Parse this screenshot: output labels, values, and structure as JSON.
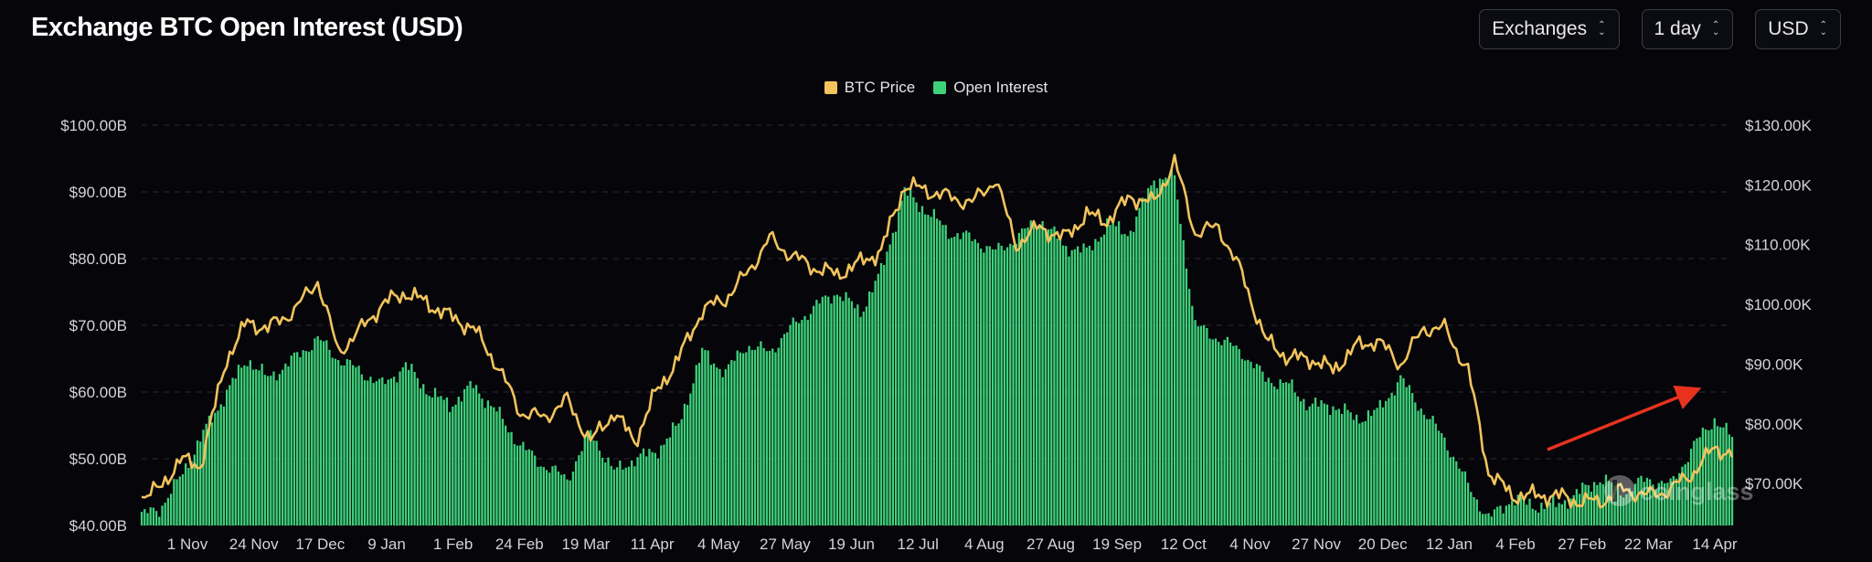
{
  "header": {
    "title": "Exchange BTC Open Interest (USD)",
    "controls": [
      {
        "name": "exchanges-select",
        "label": "Exchanges"
      },
      {
        "name": "interval-select",
        "label": "1 day"
      },
      {
        "name": "currency-select",
        "label": "USD"
      }
    ]
  },
  "watermark": "coinglass",
  "colors": {
    "background": "#05050a",
    "price_line": "#f2c35c",
    "oi_bar": "#3ed17a",
    "arrow": "#e8321e",
    "grid": "#2a2d35"
  },
  "chart_data": {
    "type": "bar",
    "title": "Exchange BTC Open Interest (USD)",
    "legend": {
      "placement": "top-center",
      "entries": [
        "BTC Price",
        "Open Interest"
      ]
    },
    "grid": true,
    "x_tick_labels": [
      "1 Nov",
      "24 Nov",
      "17 Dec",
      "9 Jan",
      "1 Feb",
      "24 Feb",
      "19 Mar",
      "11 Apr",
      "4 May",
      "27 May",
      "19 Jun",
      "12 Jul",
      "4 Aug",
      "27 Aug",
      "19 Sep",
      "12 Oct",
      "4 Nov",
      "27 Nov",
      "20 Dec",
      "12 Jan",
      "4 Feb",
      "27 Feb",
      "22 Mar",
      "14 Apr"
    ],
    "y_left": {
      "tick_labels": [
        "$40.00B",
        "$50.00B",
        "$60.00B",
        "$70.00B",
        "$80.00B",
        "$90.00B",
        "$100.00B"
      ],
      "range": [
        40,
        100
      ],
      "unit": "B USD"
    },
    "y_right": {
      "tick_labels": [
        "$70.00K",
        "$80.00K",
        "$90.00K",
        "$100.00K",
        "$110.00K",
        "$120.00K",
        "$130.00K"
      ],
      "range": [
        63,
        130
      ],
      "unit": "K USD"
    },
    "x_dates": [
      "2023-10-26",
      "2023-11-01",
      "2023-11-08",
      "2023-11-15",
      "2023-11-24",
      "2023-12-01",
      "2023-12-08",
      "2023-12-17",
      "2023-12-25",
      "2024-01-01",
      "2024-01-09",
      "2024-01-16",
      "2024-01-24",
      "2024-02-01",
      "2024-02-08",
      "2024-02-16",
      "2024-02-24",
      "2024-03-03",
      "2024-03-11",
      "2024-03-19",
      "2024-03-27",
      "2024-04-04",
      "2024-04-11",
      "2024-04-18",
      "2024-04-26",
      "2024-05-04",
      "2024-05-12",
      "2024-05-19",
      "2024-05-27",
      "2024-06-04",
      "2024-06-12",
      "2024-06-19",
      "2024-06-27",
      "2024-07-04",
      "2024-07-12",
      "2024-07-20",
      "2024-07-27",
      "2024-08-04",
      "2024-08-12",
      "2024-08-19",
      "2024-08-27",
      "2024-09-04",
      "2024-09-12",
      "2024-09-19",
      "2024-09-27",
      "2024-10-05",
      "2024-10-12",
      "2024-10-19",
      "2024-10-27",
      "2024-11-04",
      "2024-11-12",
      "2024-11-20",
      "2024-11-27",
      "2024-12-05",
      "2024-12-13",
      "2024-12-20",
      "2024-12-28",
      "2025-01-05",
      "2025-01-12",
      "2025-01-20",
      "2025-01-27",
      "2025-02-04",
      "2025-02-11",
      "2025-02-19",
      "2025-02-27",
      "2025-03-06",
      "2025-03-14",
      "2025-03-22",
      "2025-03-30",
      "2025-04-07",
      "2025-04-14",
      "2025-04-20"
    ],
    "series": [
      {
        "name": "Open Interest",
        "axis": "left",
        "type": "bar",
        "values": [
          41.5,
          42.5,
          47,
          53,
          60,
          65,
          62,
          65,
          68,
          65,
          63,
          61,
          64,
          60,
          58,
          61,
          57,
          52,
          49,
          47,
          54,
          48,
          50,
          51,
          55,
          66,
          63,
          67,
          66,
          70,
          73,
          75,
          72,
          78,
          90,
          87,
          84,
          83,
          81,
          83,
          86,
          82,
          81,
          85,
          84,
          92,
          92,
          70,
          68,
          66,
          62,
          61,
          58,
          58,
          56,
          57,
          62,
          57,
          53,
          46,
          41,
          44,
          43,
          43,
          45,
          47,
          45,
          47,
          46,
          52,
          56,
          53
        ]
      },
      {
        "name": "BTC Price",
        "axis": "right",
        "type": "line",
        "values": [
          68,
          69,
          74,
          73,
          91,
          97,
          96,
          99,
          104,
          92,
          96,
          100,
          102,
          100,
          98,
          96,
          90,
          82,
          81,
          84,
          77,
          82,
          77,
          85,
          91,
          99,
          101,
          105,
          111,
          108,
          106,
          105,
          107,
          109,
          120,
          119,
          118,
          117,
          121,
          110,
          113,
          111,
          115,
          114,
          118,
          117,
          124,
          112,
          113,
          105,
          94,
          91,
          91,
          89,
          93,
          94,
          90,
          96,
          96,
          89,
          72,
          68,
          68,
          68,
          67,
          67,
          69,
          68,
          69,
          72,
          76,
          75
        ]
      }
    ]
  }
}
